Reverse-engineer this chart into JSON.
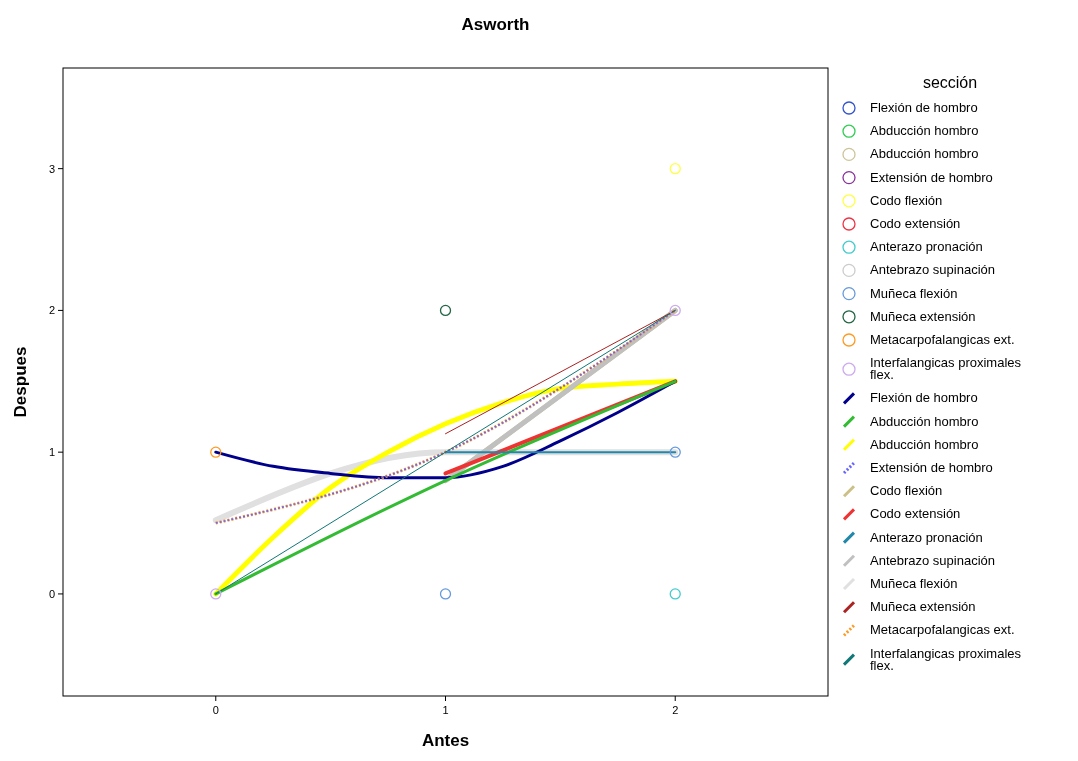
{
  "chart_data": {
    "type": "line",
    "title": "Asworth",
    "xlabel": "Antes",
    "ylabel": "Despues",
    "legend_title": "sección",
    "legend": "right",
    "grid": false,
    "xlim": [
      -0.665,
      2.665
    ],
    "xticks": [
      0,
      1,
      2
    ],
    "ylim": [
      -0.72,
      3.71
    ],
    "yticks": [
      0,
      1,
      2,
      3
    ],
    "series": [
      {
        "type": "scatter",
        "marker": "circle",
        "name": "Flexión de hombro",
        "color": "#3355cc"
      },
      {
        "type": "scatter",
        "marker": "circle",
        "name": "Abducción hombro",
        "color": "#33cc55"
      },
      {
        "type": "scatter",
        "marker": "circle",
        "name": "Abducción hombro",
        "color": "#ccc499"
      },
      {
        "type": "scatter",
        "marker": "circle",
        "name": "Extensión de hombro",
        "color": "#883399"
      },
      {
        "type": "scatter",
        "marker": "circle",
        "name": "Codo flexión",
        "color": "#ffff44",
        "x": [
          2
        ],
        "values": [
          3
        ]
      },
      {
        "type": "scatter",
        "marker": "circle",
        "name": "Codo extensión",
        "color": "#ee3344"
      },
      {
        "type": "scatter",
        "marker": "circle",
        "name": "Anterazo pronación",
        "color": "#44cccc",
        "x": [
          2
        ],
        "values": [
          0
        ]
      },
      {
        "type": "scatter",
        "marker": "circle",
        "name": "Antebrazo supinación",
        "color": "#cccccc"
      },
      {
        "type": "scatter",
        "marker": "circle",
        "name": "Muñeca flexión",
        "color": "#6699dd",
        "x": [
          1,
          2
        ],
        "values": [
          0,
          1
        ]
      },
      {
        "type": "scatter",
        "marker": "circle",
        "name": "Muñeca extensión",
        "color": "#226644",
        "x": [
          1
        ],
        "values": [
          2
        ]
      },
      {
        "type": "scatter",
        "marker": "circle",
        "name": "Metacarpofalangicas ext.",
        "color": "#ff9922",
        "x": [
          0
        ],
        "values": [
          1
        ]
      },
      {
        "type": "scatter",
        "marker": "circle",
        "name": "Interfalangicas proximales flex.",
        "color": "#ccaaee",
        "x": [
          0,
          2
        ],
        "values": [
          0,
          2
        ]
      },
      {
        "line_style": "solid",
        "name": "Flexión de hombro",
        "color": "#00008b",
        "x": [
          0,
          0.25,
          0.5,
          0.75,
          1,
          1.25,
          1.5,
          1.75,
          2
        ],
        "values": [
          1,
          0.9,
          0.85,
          0.82,
          0.82,
          0.9,
          1.08,
          1.28,
          1.5
        ]
      },
      {
        "line_style": "solid",
        "name": "Abducción hombro",
        "color": "#33bb33",
        "x": [
          0,
          1,
          2
        ],
        "values": [
          0,
          0.8,
          1.5
        ]
      },
      {
        "line_style": "solid",
        "name": "Abducción hombro",
        "color": "#ffff00",
        "x": [
          0,
          0.25,
          0.5,
          0.75,
          1,
          1.25,
          1.5,
          1.75,
          2
        ],
        "values": [
          0,
          0.4,
          0.75,
          1.0,
          1.2,
          1.35,
          1.45,
          1.48,
          1.5
        ]
      },
      {
        "line_style": "dotted",
        "name": "Extensión de hombro",
        "color": "#6666ff",
        "x": [
          0,
          1,
          2
        ],
        "values": [
          0.5,
          1,
          2
        ]
      },
      {
        "line_style": "solid",
        "name": "Codo flexión",
        "color": "#ccc088",
        "x": [
          1,
          2
        ],
        "values": [
          0.8,
          2
        ]
      },
      {
        "line_style": "solid",
        "name": "Codo extensión",
        "color": "#ee3333",
        "x": [
          1,
          2
        ],
        "values": [
          0.85,
          1.5
        ]
      },
      {
        "line_style": "solid",
        "name": "Anterazo pronación",
        "color": "#2288aa",
        "x": [
          1,
          2
        ],
        "values": [
          1,
          1
        ]
      },
      {
        "line_style": "solid",
        "name": "Antebrazo supinación",
        "color": "#c0c0c0",
        "x": [
          1,
          2
        ],
        "values": [
          0.8,
          2
        ]
      },
      {
        "line_style": "solid",
        "name": "Muñeca flexión",
        "color": "#e0e0e0",
        "x": [
          0,
          1,
          2
        ],
        "values": [
          0.52,
          1,
          1
        ]
      },
      {
        "line_style": "solid",
        "name": "Muñeca extensión",
        "color": "#aa2222",
        "x": [
          1,
          2
        ],
        "values": [
          1.13,
          2
        ]
      },
      {
        "line_style": "dotted",
        "name": "Metacarpofalangicas ext.",
        "color": "#ff9922",
        "x": [
          0,
          1,
          2
        ],
        "values": [
          0.5,
          1,
          2
        ]
      },
      {
        "line_style": "solid",
        "name": "Interfalangicas proximales flex.",
        "color": "#117777",
        "x": [
          0,
          2
        ],
        "values": [
          0,
          2
        ]
      }
    ]
  }
}
